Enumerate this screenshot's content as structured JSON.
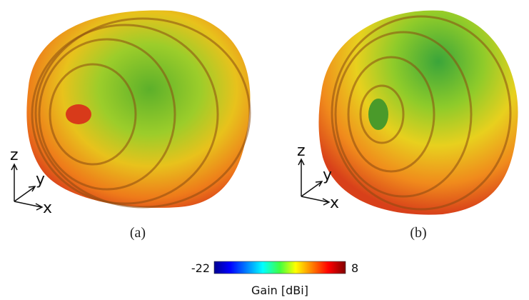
{
  "panels": [
    {
      "label": "(a)",
      "axes": {
        "z": "z",
        "y": "y",
        "x": "x"
      }
    },
    {
      "label": "(b)",
      "axes": {
        "z": "z",
        "y": "y",
        "x": "x"
      }
    }
  ],
  "colorbar": {
    "min": -22,
    "max": 8,
    "label": "Gain [dBi]"
  }
}
